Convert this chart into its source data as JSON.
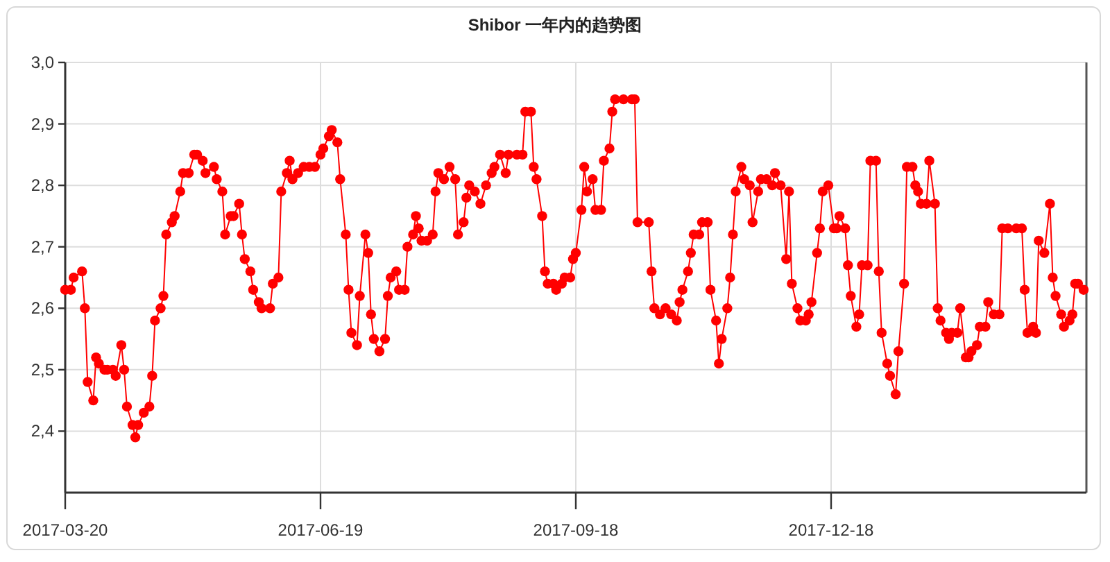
{
  "chart_data": {
    "type": "line",
    "title": "Shibor 一年内的趋势图",
    "color": "#ff0000",
    "marker": "circle",
    "line_style": "solid",
    "grid": true,
    "xlim": [
      "2017-03-20",
      "2018-03-19"
    ],
    "xticks": [
      "2017-03-20",
      "2017-06-19",
      "2017-09-18",
      "2017-12-18"
    ],
    "ylim": [
      2.3,
      3.0
    ],
    "yticks": [
      {
        "value": 2.4,
        "label": "2,4"
      },
      {
        "value": 2.5,
        "label": "2,5"
      },
      {
        "value": 2.6,
        "label": "2,6"
      },
      {
        "value": 2.7,
        "label": "2,7"
      },
      {
        "value": 2.8,
        "label": "2,8"
      },
      {
        "value": 2.9,
        "label": "2,9"
      },
      {
        "value": 3.0,
        "label": "3,0"
      }
    ],
    "x": [
      "2017-03-20",
      "2017-03-22",
      "2017-03-23",
      "2017-03-26",
      "2017-03-27",
      "2017-03-28",
      "2017-03-30",
      "2017-03-31",
      "2017-04-01",
      "2017-04-03",
      "2017-04-04",
      "2017-04-06",
      "2017-04-07",
      "2017-04-09",
      "2017-04-10",
      "2017-04-11",
      "2017-04-13",
      "2017-04-14",
      "2017-04-15",
      "2017-04-17",
      "2017-04-19",
      "2017-04-20",
      "2017-04-21",
      "2017-04-23",
      "2017-04-24",
      "2017-04-25",
      "2017-04-27",
      "2017-04-28",
      "2017-04-30",
      "2017-05-01",
      "2017-05-03",
      "2017-05-05",
      "2017-05-06",
      "2017-05-08",
      "2017-05-09",
      "2017-05-12",
      "2017-05-13",
      "2017-05-15",
      "2017-05-16",
      "2017-05-18",
      "2017-05-19",
      "2017-05-21",
      "2017-05-22",
      "2017-05-23",
      "2017-05-25",
      "2017-05-26",
      "2017-05-28",
      "2017-05-29",
      "2017-06-01",
      "2017-06-02",
      "2017-06-04",
      "2017-06-05",
      "2017-06-07",
      "2017-06-08",
      "2017-06-09",
      "2017-06-11",
      "2017-06-13",
      "2017-06-15",
      "2017-06-17",
      "2017-06-19",
      "2017-06-20",
      "2017-06-22",
      "2017-06-23",
      "2017-06-25",
      "2017-06-26",
      "2017-06-28",
      "2017-06-29",
      "2017-06-30",
      "2017-07-02",
      "2017-07-03",
      "2017-07-05",
      "2017-07-06",
      "2017-07-07",
      "2017-07-08",
      "2017-07-10",
      "2017-07-12",
      "2017-07-13",
      "2017-07-14",
      "2017-07-16",
      "2017-07-17",
      "2017-07-19",
      "2017-07-20",
      "2017-07-22",
      "2017-07-23",
      "2017-07-24",
      "2017-07-25",
      "2017-07-27",
      "2017-07-29",
      "2017-07-30",
      "2017-07-31",
      "2017-08-02",
      "2017-08-04",
      "2017-08-06",
      "2017-08-07",
      "2017-08-09",
      "2017-08-10",
      "2017-08-11",
      "2017-08-13",
      "2017-08-15",
      "2017-08-17",
      "2017-08-19",
      "2017-08-20",
      "2017-08-22",
      "2017-08-24",
      "2017-08-25",
      "2017-08-28",
      "2017-08-30",
      "2017-08-31",
      "2017-09-02",
      "2017-09-03",
      "2017-09-04",
      "2017-09-06",
      "2017-09-07",
      "2017-09-08",
      "2017-09-10",
      "2017-09-11",
      "2017-09-13",
      "2017-09-14",
      "2017-09-16",
      "2017-09-17",
      "2017-09-18",
      "2017-09-20",
      "2017-09-21",
      "2017-09-22",
      "2017-09-24",
      "2017-09-25",
      "2017-09-27",
      "2017-09-28",
      "2017-09-30",
      "2017-10-01",
      "2017-10-02",
      "2017-10-05",
      "2017-10-08",
      "2017-10-09",
      "2017-10-10",
      "2017-10-14",
      "2017-10-15",
      "2017-10-16",
      "2017-10-18",
      "2017-10-20",
      "2017-10-22",
      "2017-10-24",
      "2017-10-25",
      "2017-10-26",
      "2017-10-28",
      "2017-10-29",
      "2017-10-30",
      "2017-11-01",
      "2017-11-02",
      "2017-11-04",
      "2017-11-05",
      "2017-11-07",
      "2017-11-08",
      "2017-11-09",
      "2017-11-11",
      "2017-11-12",
      "2017-11-13",
      "2017-11-14",
      "2017-11-16",
      "2017-11-17",
      "2017-11-19",
      "2017-11-20",
      "2017-11-22",
      "2017-11-23",
      "2017-11-25",
      "2017-11-27",
      "2017-11-28",
      "2017-11-30",
      "2017-12-02",
      "2017-12-03",
      "2017-12-04",
      "2017-12-06",
      "2017-12-07",
      "2017-12-09",
      "2017-12-10",
      "2017-12-11",
      "2017-12-13",
      "2017-12-14",
      "2017-12-15",
      "2017-12-17",
      "2017-12-19",
      "2017-12-20",
      "2017-12-21",
      "2017-12-23",
      "2017-12-24",
      "2017-12-25",
      "2017-12-27",
      "2017-12-28",
      "2017-12-29",
      "2017-12-31",
      "2018-01-01",
      "2018-01-03",
      "2018-01-04",
      "2018-01-05",
      "2018-01-07",
      "2018-01-08",
      "2018-01-10",
      "2018-01-11",
      "2018-01-13",
      "2018-01-14",
      "2018-01-16",
      "2018-01-17",
      "2018-01-18",
      "2018-01-19",
      "2018-01-21",
      "2018-01-22",
      "2018-01-24",
      "2018-01-25",
      "2018-01-26",
      "2018-01-28",
      "2018-01-29",
      "2018-01-30",
      "2018-02-01",
      "2018-02-02",
      "2018-02-04",
      "2018-02-05",
      "2018-02-06",
      "2018-02-08",
      "2018-02-09",
      "2018-02-11",
      "2018-02-12",
      "2018-02-14",
      "2018-02-16",
      "2018-02-17",
      "2018-02-19",
      "2018-02-22",
      "2018-02-24",
      "2018-02-25",
      "2018-02-26",
      "2018-02-28",
      "2018-03-01",
      "2018-03-02",
      "2018-03-04",
      "2018-03-06",
      "2018-03-07",
      "2018-03-08",
      "2018-03-10",
      "2018-03-11",
      "2018-03-13",
      "2018-03-14",
      "2018-03-15",
      "2018-03-16",
      "2018-03-18"
    ],
    "values": [
      2.63,
      2.63,
      2.65,
      2.66,
      2.6,
      2.48,
      2.45,
      2.52,
      2.51,
      2.5,
      2.5,
      2.5,
      2.49,
      2.54,
      2.5,
      2.44,
      2.41,
      2.39,
      2.41,
      2.43,
      2.44,
      2.49,
      2.58,
      2.6,
      2.62,
      2.72,
      2.74,
      2.75,
      2.79,
      2.82,
      2.82,
      2.85,
      2.85,
      2.84,
      2.82,
      2.83,
      2.81,
      2.79,
      2.72,
      2.75,
      2.75,
      2.77,
      2.72,
      2.68,
      2.66,
      2.63,
      2.61,
      2.6,
      2.6,
      2.64,
      2.65,
      2.79,
      2.82,
      2.84,
      2.81,
      2.82,
      2.83,
      2.83,
      2.83,
      2.85,
      2.86,
      2.88,
      2.89,
      2.87,
      2.81,
      2.72,
      2.63,
      2.56,
      2.54,
      2.62,
      2.72,
      2.69,
      2.59,
      2.55,
      2.53,
      2.55,
      2.62,
      2.65,
      2.66,
      2.63,
      2.63,
      2.7,
      2.72,
      2.75,
      2.73,
      2.71,
      2.71,
      2.72,
      2.79,
      2.82,
      2.81,
      2.83,
      2.81,
      2.72,
      2.74,
      2.78,
      2.8,
      2.79,
      2.77,
      2.8,
      2.82,
      2.83,
      2.85,
      2.82,
      2.85,
      2.85,
      2.85,
      2.92,
      2.92,
      2.83,
      2.81,
      2.75,
      2.66,
      2.64,
      2.64,
      2.63,
      2.64,
      2.65,
      2.65,
      2.68,
      2.69,
      2.76,
      2.83,
      2.79,
      2.81,
      2.76,
      2.76,
      2.84,
      2.86,
      2.92,
      2.94,
      2.94,
      2.94,
      2.94,
      2.74,
      2.74,
      2.66,
      2.6,
      2.59,
      2.6,
      2.59,
      2.58,
      2.61,
      2.63,
      2.66,
      2.69,
      2.72,
      2.72,
      2.74,
      2.74,
      2.63,
      2.58,
      2.51,
      2.55,
      2.6,
      2.65,
      2.72,
      2.79,
      2.83,
      2.81,
      2.8,
      2.74,
      2.79,
      2.81,
      2.81,
      2.8,
      2.82,
      2.8,
      2.68,
      2.79,
      2.64,
      2.6,
      2.58,
      2.58,
      2.59,
      2.61,
      2.69,
      2.73,
      2.79,
      2.8,
      2.73,
      2.73,
      2.75,
      2.73,
      2.67,
      2.62,
      2.57,
      2.59,
      2.67,
      2.67,
      2.84,
      2.84,
      2.66,
      2.56,
      2.51,
      2.49,
      2.46,
      2.53,
      2.64,
      2.83,
      2.83,
      2.8,
      2.79,
      2.77,
      2.77,
      2.84,
      2.77,
      2.6,
      2.58,
      2.56,
      2.55,
      2.56,
      2.56,
      2.6,
      2.52,
      2.52,
      2.53,
      2.54,
      2.57,
      2.57,
      2.61,
      2.59,
      2.59,
      2.73,
      2.73,
      2.73,
      2.73,
      2.63,
      2.56,
      2.57,
      2.56,
      2.71,
      2.69,
      2.77,
      2.65,
      2.62,
      2.59,
      2.57,
      2.58,
      2.59,
      2.64,
      2.64,
      2.63
    ]
  }
}
